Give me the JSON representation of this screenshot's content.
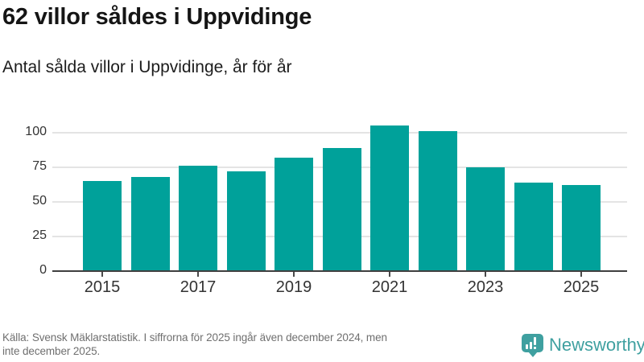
{
  "header": {
    "title": "62 villor såldes i Uppvidinge",
    "subtitle": "Antal sålda villor i Uppvidinge, år för år"
  },
  "chart_data": {
    "type": "bar",
    "categories": [
      "2015",
      "2016",
      "2017",
      "2018",
      "2019",
      "2020",
      "2021",
      "2022",
      "2023",
      "2024",
      "2025"
    ],
    "values": [
      65,
      68,
      76,
      72,
      82,
      89,
      105,
      101,
      75,
      64,
      62
    ],
    "title": "62 villor såldes i Uppvidinge",
    "subtitle": "Antal sålda villor i Uppvidinge, år för år",
    "xlabel": "",
    "ylabel": "",
    "ylim": [
      0,
      110
    ],
    "yticks": [
      0,
      25,
      50,
      75,
      100
    ],
    "xtick_labels": [
      "2015",
      "2017",
      "2019",
      "2021",
      "2023",
      "2025"
    ],
    "grid": "horizontal",
    "legend": "none",
    "bar_color": "#00a19a"
  },
  "footer": {
    "source_lines": [
      "Källa: Svensk Mäklarstatistik. I siffrorna för 2025 ingår även december 2024, men",
      "inte december 2025."
    ],
    "brand": "Newsworthy",
    "brand_color": "#3fa0a0"
  },
  "colors": {
    "bar": "#00a19a",
    "title_text": "#151515",
    "axis_label": "#333333",
    "gridline": "#e4e4e4",
    "axis_line": "#3f3f3f",
    "source_text": "#6f6f6f"
  }
}
